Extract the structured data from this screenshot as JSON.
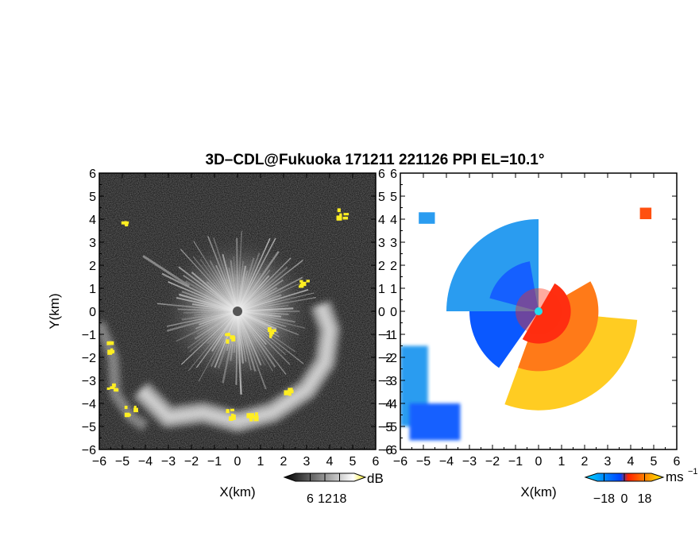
{
  "figure": {
    "title": "3D–CDL@Fukuoka 171211 221126 PPI EL=10.1°"
  },
  "chart_data": [
    {
      "type": "heatmap",
      "panel": "left",
      "quantity": "SNR",
      "xlabel": "X(km)",
      "ylabel": "Y(km)",
      "xlim": [
        -6,
        6
      ],
      "ylim": [
        -6,
        6
      ],
      "xticks": [
        "−6",
        "−5",
        "−4",
        "−3",
        "−2",
        "−1",
        "0",
        "1",
        "2",
        "3",
        "4",
        "5",
        "6"
      ],
      "yticks": [
        "−6",
        "−5",
        "−4",
        "−3",
        "−2",
        "−1",
        "0",
        "1",
        "2",
        "3",
        "4",
        "5",
        "6"
      ],
      "background_color": "#1e1e1e",
      "highlight_color": "#ffee22",
      "colorbar": {
        "unit": "dB",
        "tick_labels": [
          "6",
          "12",
          "18"
        ],
        "range": [
          0,
          24
        ],
        "colors": [
          "#000000",
          "#ffffff",
          "#ffee22"
        ]
      },
      "features": [
        {
          "kind": "radial-streak-fan",
          "center": [
            0,
            0
          ],
          "radius_km": 3.2
        },
        {
          "kind": "cloud-arc",
          "path_km": [
            [
              -4.2,
              -3.4
            ],
            [
              -3,
              -4.6
            ],
            [
              -1.5,
              -4.4
            ],
            [
              0,
              -4.8
            ],
            [
              1.5,
              -4.4
            ],
            [
              3,
              -3.4
            ],
            [
              3.8,
              -2.2
            ],
            [
              4,
              -0.8
            ],
            [
              3.6,
              0.3
            ]
          ]
        },
        {
          "kind": "yellow-clusters",
          "points_km": [
            [
              -4.9,
              3.9
            ],
            [
              4.5,
              4.3
            ],
            [
              2.8,
              1.2
            ],
            [
              -0.4,
              -1.1
            ],
            [
              1.4,
              -0.9
            ],
            [
              -5.6,
              -1.5
            ],
            [
              -5.5,
              -3.3
            ],
            [
              -4.7,
              -4.3
            ],
            [
              -0.3,
              -4.4
            ],
            [
              0.6,
              -4.5
            ],
            [
              2.1,
              -3.3
            ]
          ]
        }
      ]
    },
    {
      "type": "heatmap",
      "panel": "right",
      "quantity": "Doppler velocity",
      "xlabel": "X(km)",
      "ylabel": "",
      "xlim": [
        -6,
        6
      ],
      "ylim": [
        -6,
        6
      ],
      "xticks": [
        "−6",
        "−5",
        "−4",
        "−3",
        "−2",
        "−1",
        "0",
        "1",
        "2",
        "3",
        "4",
        "5",
        "6"
      ],
      "yticks": [
        "−6",
        "−5",
        "−4",
        "−3",
        "−2",
        "−1",
        "0",
        "1",
        "2",
        "3",
        "4",
        "5",
        "6"
      ],
      "background_color": "#ffffff",
      "colorbar": {
        "unit": "ms",
        "unit_sup": "−1",
        "tick_labels": [
          "−18",
          "0",
          "18"
        ],
        "range": [
          -24,
          24
        ],
        "colors": [
          "#00d8ff",
          "#0044ff",
          "#ff2200",
          "#ffee00"
        ]
      },
      "features": [
        {
          "kind": "approaching-sector",
          "color": "#1a8cff",
          "bearing_deg": [
            270,
            360
          ]
        },
        {
          "kind": "receding-sector",
          "color": "#ff4a10",
          "bearing_deg": [
            90,
            225
          ]
        },
        {
          "kind": "center-marker",
          "color": "#22ddee",
          "center": [
            0,
            0
          ]
        }
      ]
    }
  ]
}
